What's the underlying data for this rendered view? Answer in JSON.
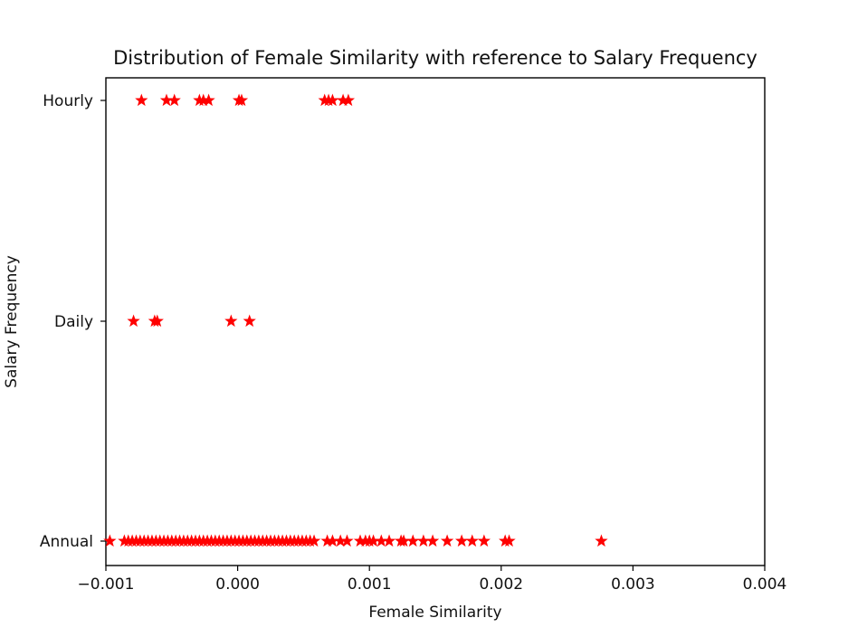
{
  "chart_data": {
    "type": "scatter",
    "title": "Distribution of Female Similarity with reference to Salary Frequency",
    "xlabel": "Female Similarity",
    "ylabel": "Salary Frequency",
    "xlim": [
      -0.001,
      0.004
    ],
    "x_ticks": [
      -0.001,
      0.0,
      0.001,
      0.002,
      0.003,
      0.004
    ],
    "x_tick_labels": [
      "−0.001",
      "0.000",
      "0.001",
      "0.002",
      "0.003",
      "0.004"
    ],
    "categories": [
      "Annual",
      "Daily",
      "Hourly"
    ],
    "grid": false,
    "marker": "star",
    "color": "#ff0000",
    "series": [
      {
        "category": "Annual",
        "x": [
          -0.00097,
          -0.00086,
          -0.00083,
          -0.0008,
          -0.00077,
          -0.00074,
          -0.00071,
          -0.00068,
          -0.00065,
          -0.00062,
          -0.00059,
          -0.00056,
          -0.00053,
          -0.0005,
          -0.00047,
          -0.00044,
          -0.00041,
          -0.00038,
          -0.00035,
          -0.00032,
          -0.00029,
          -0.00026,
          -0.00023,
          -0.0002,
          -0.00017,
          -0.00014,
          -0.00011,
          -8e-05,
          -5e-05,
          -2e-05,
          1e-05,
          4e-05,
          7e-05,
          0.0001,
          0.00013,
          0.00016,
          0.00019,
          0.00022,
          0.00025,
          0.00028,
          0.00031,
          0.00034,
          0.00037,
          0.0004,
          0.00043,
          0.00046,
          0.00049,
          0.00052,
          0.00055,
          0.00058,
          0.00068,
          0.00072,
          0.00078,
          0.00083,
          0.00093,
          0.00097,
          0.001,
          0.00103,
          0.00109,
          0.00115,
          0.00124,
          0.00126,
          0.00133,
          0.00141,
          0.00148,
          0.00159,
          0.0017,
          0.00178,
          0.00187,
          0.00203,
          0.00206,
          0.00276
        ]
      },
      {
        "category": "Daily",
        "x": [
          -0.00079,
          -0.00063,
          -0.00061,
          -5e-05,
          9e-05
        ]
      },
      {
        "category": "Hourly",
        "x": [
          -0.00073,
          -0.00054,
          -0.00048,
          -0.00029,
          -0.00026,
          -0.00022,
          1e-05,
          3e-05,
          0.00066,
          0.00069,
          0.00072,
          0.0008,
          0.00084
        ]
      }
    ]
  }
}
